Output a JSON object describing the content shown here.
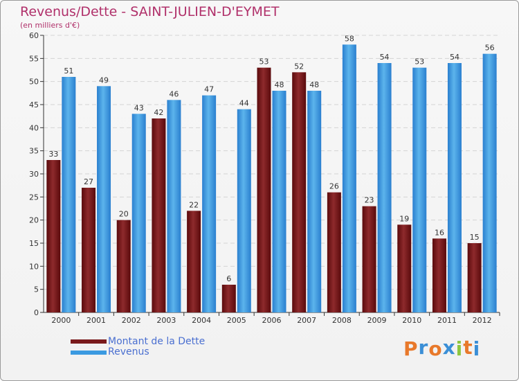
{
  "chart_data": {
    "type": "bar",
    "title": "Revenus/Dette - SAINT-JULIEN-D'EYMET",
    "subtitle": "(en milliers d'€)",
    "categories": [
      "2000",
      "2001",
      "2002",
      "2003",
      "2004",
      "2005",
      "2006",
      "2007",
      "2008",
      "2009",
      "2010",
      "2011",
      "2012"
    ],
    "series": [
      {
        "name": "Montant de la Dette",
        "color": "#7a1a1c",
        "values": [
          33,
          27,
          20,
          42,
          22,
          6,
          53,
          52,
          26,
          23,
          19,
          16,
          15
        ]
      },
      {
        "name": "Revenus",
        "color": "#3b9ae1",
        "values": [
          51,
          49,
          43,
          46,
          47,
          44,
          48,
          48,
          58,
          54,
          53,
          54,
          56
        ]
      }
    ],
    "ylim": [
      0,
      60
    ],
    "yticks": [
      0,
      5,
      10,
      15,
      20,
      25,
      30,
      35,
      40,
      45,
      50,
      55,
      60
    ],
    "grid": true,
    "xlabel": "",
    "ylabel": "",
    "legend_position": "bottom-left"
  },
  "logo": {
    "letters": [
      "P",
      "r",
      "o",
      "x",
      "i",
      "t",
      "i"
    ],
    "colors": [
      "#e8792b",
      "#3b8fd6",
      "#e8792b",
      "#3b8fd6",
      "#8dc63f",
      "#e8792b",
      "#3b8fd6"
    ]
  }
}
